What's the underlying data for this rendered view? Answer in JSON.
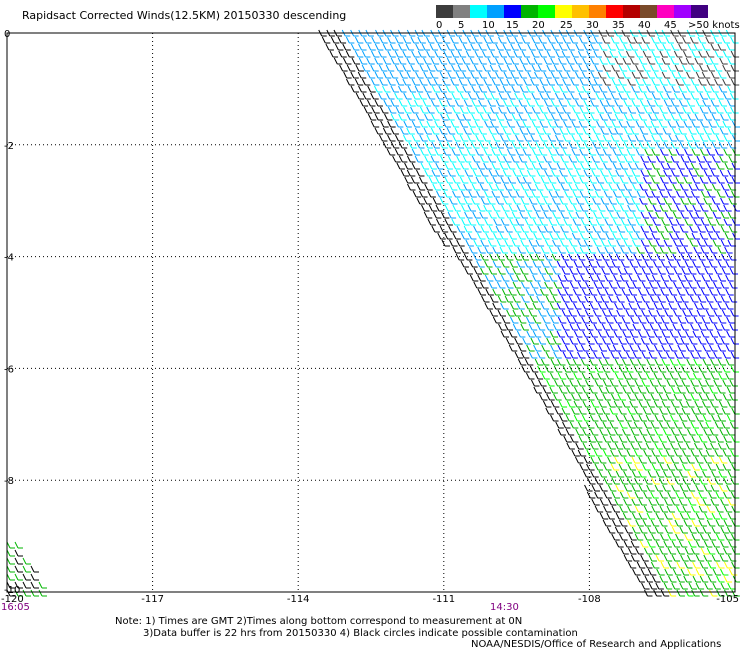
{
  "title": "Rapidsact Corrected Winds(12.5KM) 20150330 descending",
  "legend": {
    "colors": [
      "#3c3c3c",
      "#808080",
      "#00ffff",
      "#00a0ff",
      "#0000ff",
      "#00b400",
      "#00ff00",
      "#ffff00",
      "#ffc000",
      "#ff8000",
      "#ff0000",
      "#b40000",
      "#7a4a2a",
      "#ff00c0",
      "#a000ff",
      "#400080"
    ],
    "tick_labels": [
      "0",
      "5",
      "10",
      "15",
      "20",
      "25",
      "30",
      "35",
      "40",
      "45",
      ">50 knots"
    ],
    "unit": "knots"
  },
  "map": {
    "lon_labels": [
      "-120",
      "-117",
      "-114",
      "-111",
      "-108",
      "-105"
    ],
    "lat_labels": [
      "0",
      "-2",
      "-4",
      "-6",
      "-8",
      "-10"
    ],
    "time_labels": [
      {
        "text": "16:05",
        "color": "#800080"
      },
      {
        "text": "14:30",
        "color": "#800080"
      }
    ],
    "lon_range": [
      -120,
      -105
    ],
    "lat_range": [
      -10,
      0
    ],
    "grid": "dotted"
  },
  "notes": {
    "line1": "Note: 1) Times are GMT 2)Times along bottom correspond to measurement at 0N",
    "line2": "3)Data buffer is 22 hrs from 20150330 4) Black circles indicate possible contamination",
    "line3": "NOAA/NESDIS/Office of Research and Applications"
  }
}
